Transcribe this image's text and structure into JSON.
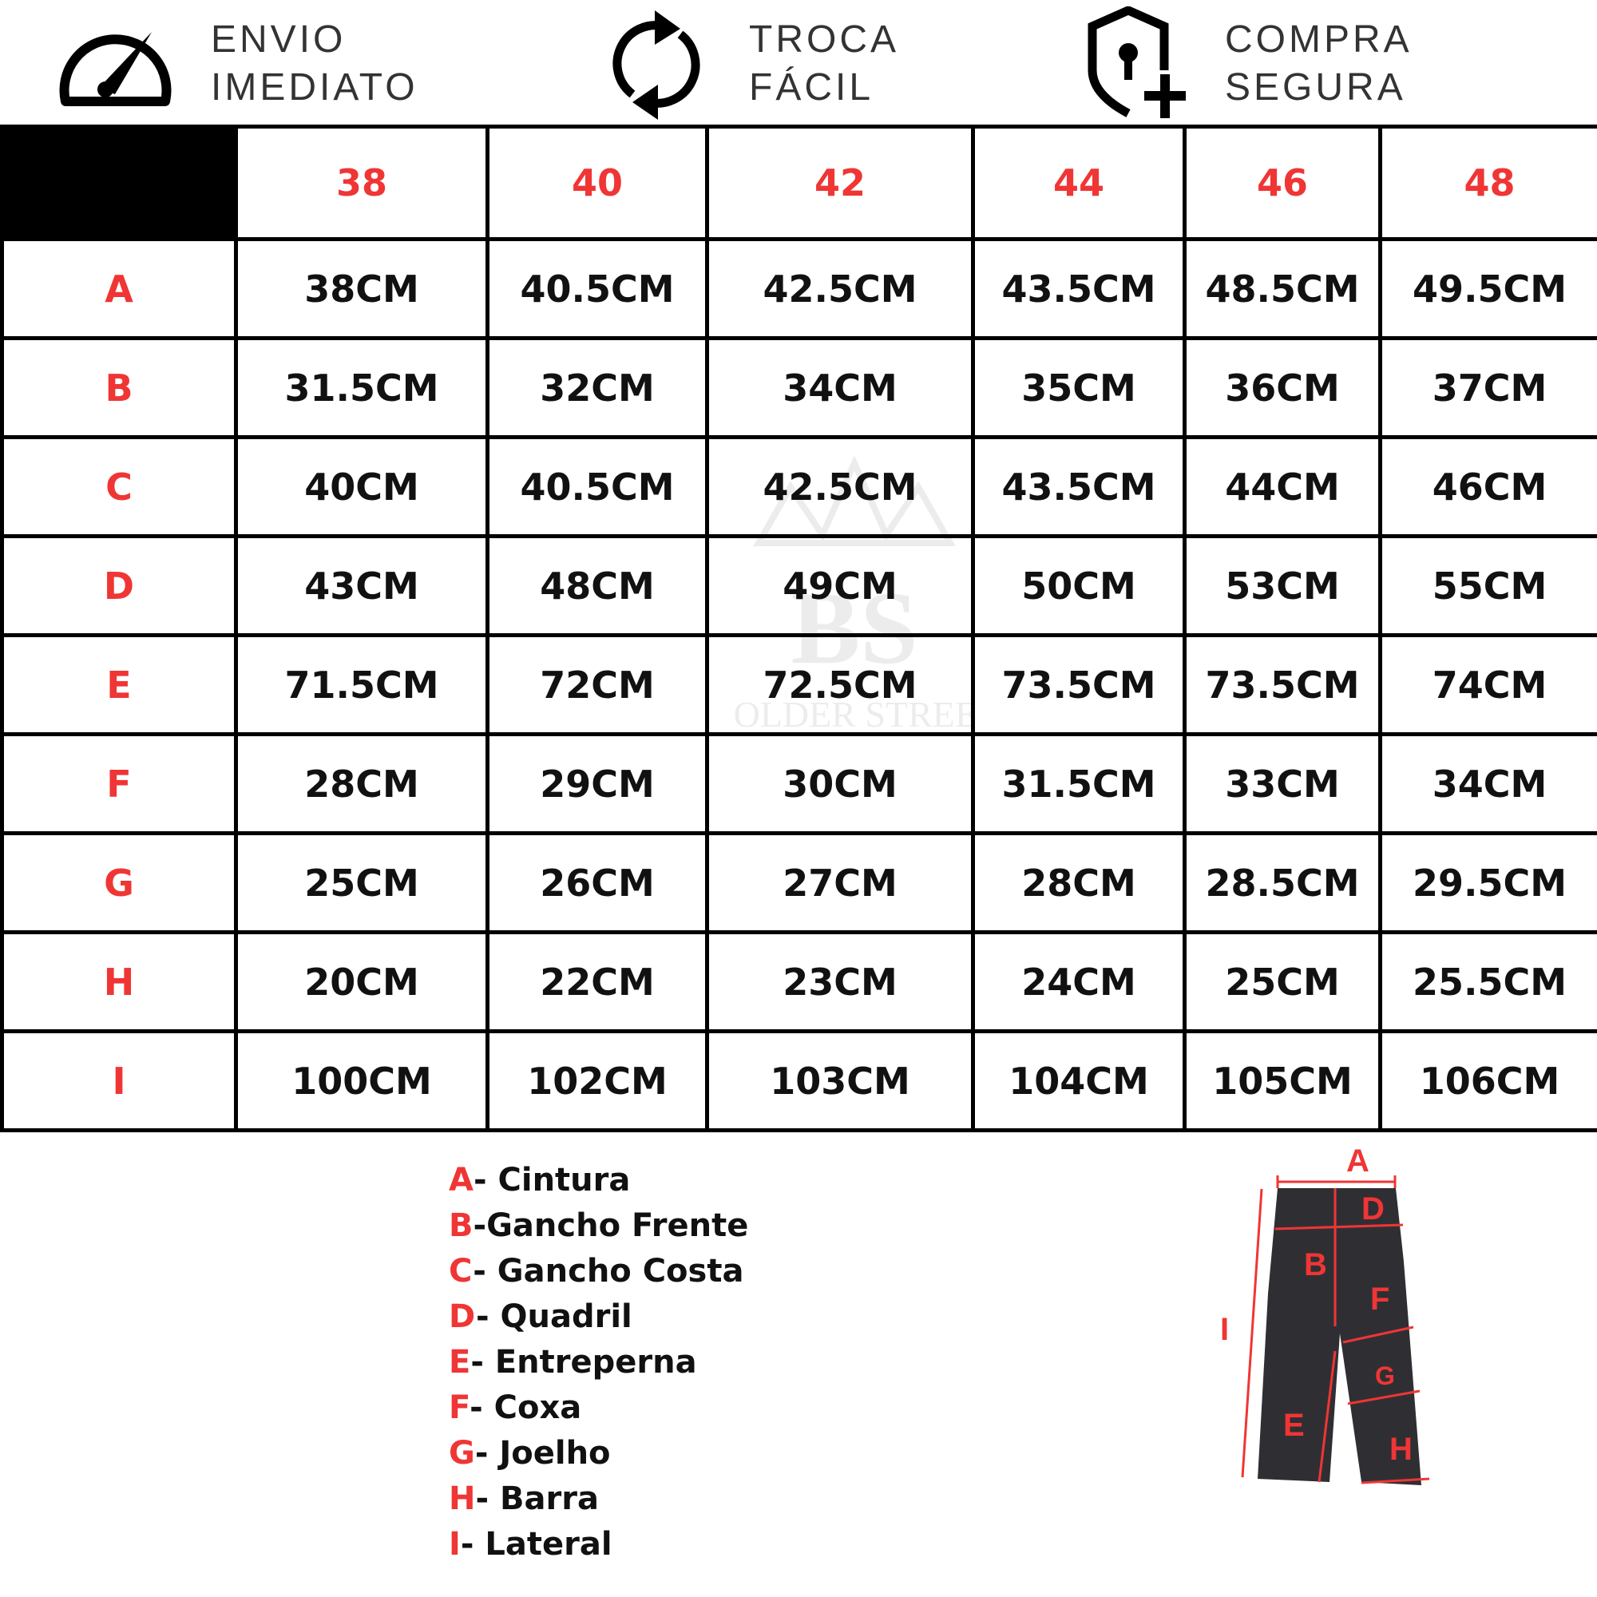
{
  "features": [
    {
      "icon": "speedometer-icon",
      "line1": "ENVIO",
      "line2": "IMEDIATO"
    },
    {
      "icon": "refresh-arrows-icon",
      "line1": "TROCA",
      "line2": "FÁCIL"
    },
    {
      "icon": "shield-lock-plus-icon",
      "line1": "COMPRA",
      "line2": "SEGURA"
    }
  ],
  "table": {
    "sizes": [
      "38",
      "40",
      "42",
      "44",
      "46",
      "48"
    ],
    "rows": [
      {
        "label": "A",
        "values": [
          "38CM",
          "40.5CM",
          "42.5CM",
          "43.5CM",
          "48.5CM",
          "49.5CM"
        ]
      },
      {
        "label": "B",
        "values": [
          "31.5CM",
          "32CM",
          "34CM",
          "35CM",
          "36CM",
          "37CM"
        ]
      },
      {
        "label": "C",
        "values": [
          "40CM",
          "40.5CM",
          "42.5CM",
          "43.5CM",
          "44CM",
          "46CM"
        ]
      },
      {
        "label": "D",
        "values": [
          "43CM",
          "48CM",
          "49CM",
          "50CM",
          "53CM",
          "55CM"
        ]
      },
      {
        "label": "E",
        "values": [
          "71.5CM",
          "72CM",
          "72.5CM",
          "73.5CM",
          "73.5CM",
          "74CM"
        ]
      },
      {
        "label": "F",
        "values": [
          "28CM",
          "29CM",
          "30CM",
          "31.5CM",
          "33CM",
          "34CM"
        ]
      },
      {
        "label": "G",
        "values": [
          "25CM",
          "26CM",
          "27CM",
          "28CM",
          "28.5CM",
          "29.5CM"
        ]
      },
      {
        "label": "H",
        "values": [
          "20CM",
          "22CM",
          "23CM",
          "24CM",
          "25CM",
          "25.5CM"
        ]
      },
      {
        "label": "I",
        "values": [
          "100CM",
          "102CM",
          "103CM",
          "104CM",
          "105CM",
          "106CM"
        ]
      }
    ]
  },
  "legend": [
    {
      "key": "A",
      "text": "- Cintura"
    },
    {
      "key": "B",
      "text": "-Gancho Frente"
    },
    {
      "key": "C",
      "text": "- Gancho Costa"
    },
    {
      "key": "D",
      "text": "- Quadril"
    },
    {
      "key": "E",
      "text": "- Entreperna"
    },
    {
      "key": "F",
      "text": "- Coxa"
    },
    {
      "key": "G",
      "text": "- Joelho"
    },
    {
      "key": "H",
      "text": "- Barra"
    },
    {
      "key": "I",
      "text": "- Lateral"
    }
  ],
  "diagram_labels": [
    "A",
    "B",
    "D",
    "F",
    "G",
    "I",
    "E",
    "H"
  ],
  "watermark": "BOLDER STREET",
  "colors": {
    "accent": "#f03535",
    "text": "#111111",
    "denim": "#2f2f33"
  }
}
